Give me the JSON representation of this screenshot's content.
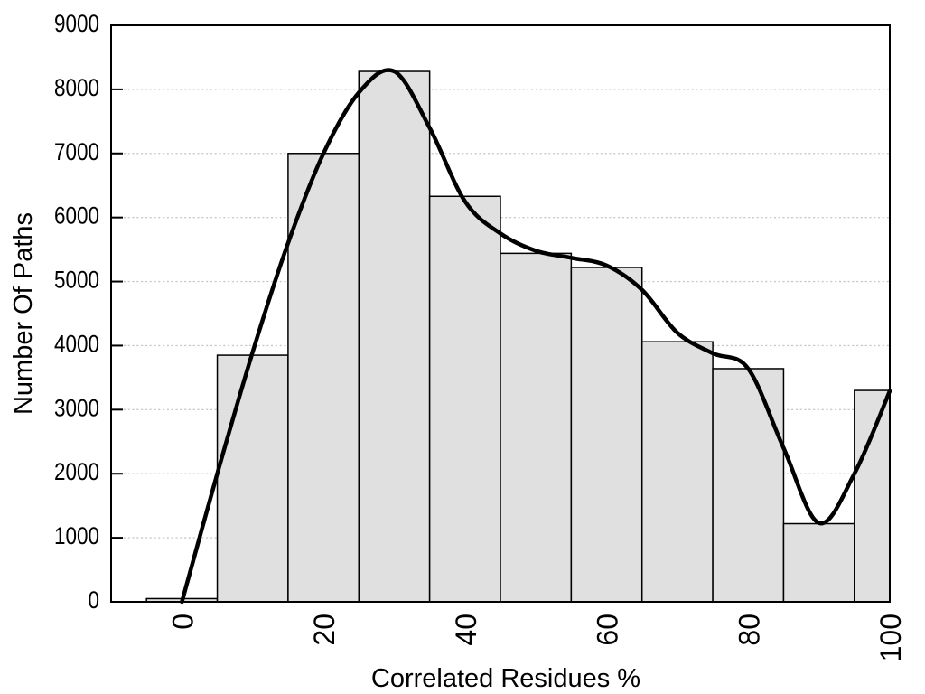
{
  "chart_data": {
    "type": "bar",
    "subtype": "histogram_with_smoothed_curve",
    "title": "",
    "xlabel": "Correlated Residues %",
    "ylabel": "Number Of Paths",
    "xlim": [
      -10,
      100
    ],
    "ylim": [
      0,
      9000
    ],
    "grid": "horizontal dotted gridlines at each y tick, no vertical gridlines",
    "legend": "none",
    "x_ticks": {
      "values": [
        0,
        20,
        40,
        60,
        80,
        100
      ],
      "labels": [
        "0",
        "20",
        "40",
        "60",
        "80",
        "100"
      ],
      "label_rotation_deg": -90
    },
    "y_ticks": {
      "values": [
        0,
        1000,
        2000,
        3000,
        4000,
        5000,
        6000,
        7000,
        8000,
        9000
      ],
      "labels": [
        "0",
        "1000",
        "2000",
        "3000",
        "4000",
        "5000",
        "6000",
        "7000",
        "8000",
        "9000"
      ]
    },
    "bars": {
      "centers": [
        0,
        10,
        20,
        30,
        40,
        50,
        60,
        70,
        80,
        90,
        100
      ],
      "width": 10,
      "values": [
        50,
        3850,
        7000,
        8280,
        6330,
        5440,
        5220,
        4060,
        3640,
        1220,
        3300
      ],
      "note": "first and last bars are clipped at the plot range edges (-10 visible area left, 100 right)"
    },
    "series": [
      {
        "name": "smoothed frequency curve",
        "type": "line",
        "x": [
          0,
          5,
          10,
          15,
          20,
          25,
          30,
          35,
          40,
          45,
          50,
          55,
          60,
          65,
          70,
          75,
          80,
          85,
          90,
          95,
          100
        ],
        "y": [
          0,
          2000,
          3900,
          5600,
          7000,
          7950,
          8280,
          7400,
          6250,
          5750,
          5480,
          5370,
          5250,
          4870,
          4200,
          3880,
          3640,
          2400,
          1230,
          2000,
          3290
        ]
      }
    ],
    "colors": {
      "background": "#ffffff",
      "bar_fill": "#e0e0e0",
      "bar_border": "#000000",
      "curve": "#000000",
      "gridline": "#c8c8c8",
      "frame": "#000000",
      "text": "#000000"
    }
  }
}
